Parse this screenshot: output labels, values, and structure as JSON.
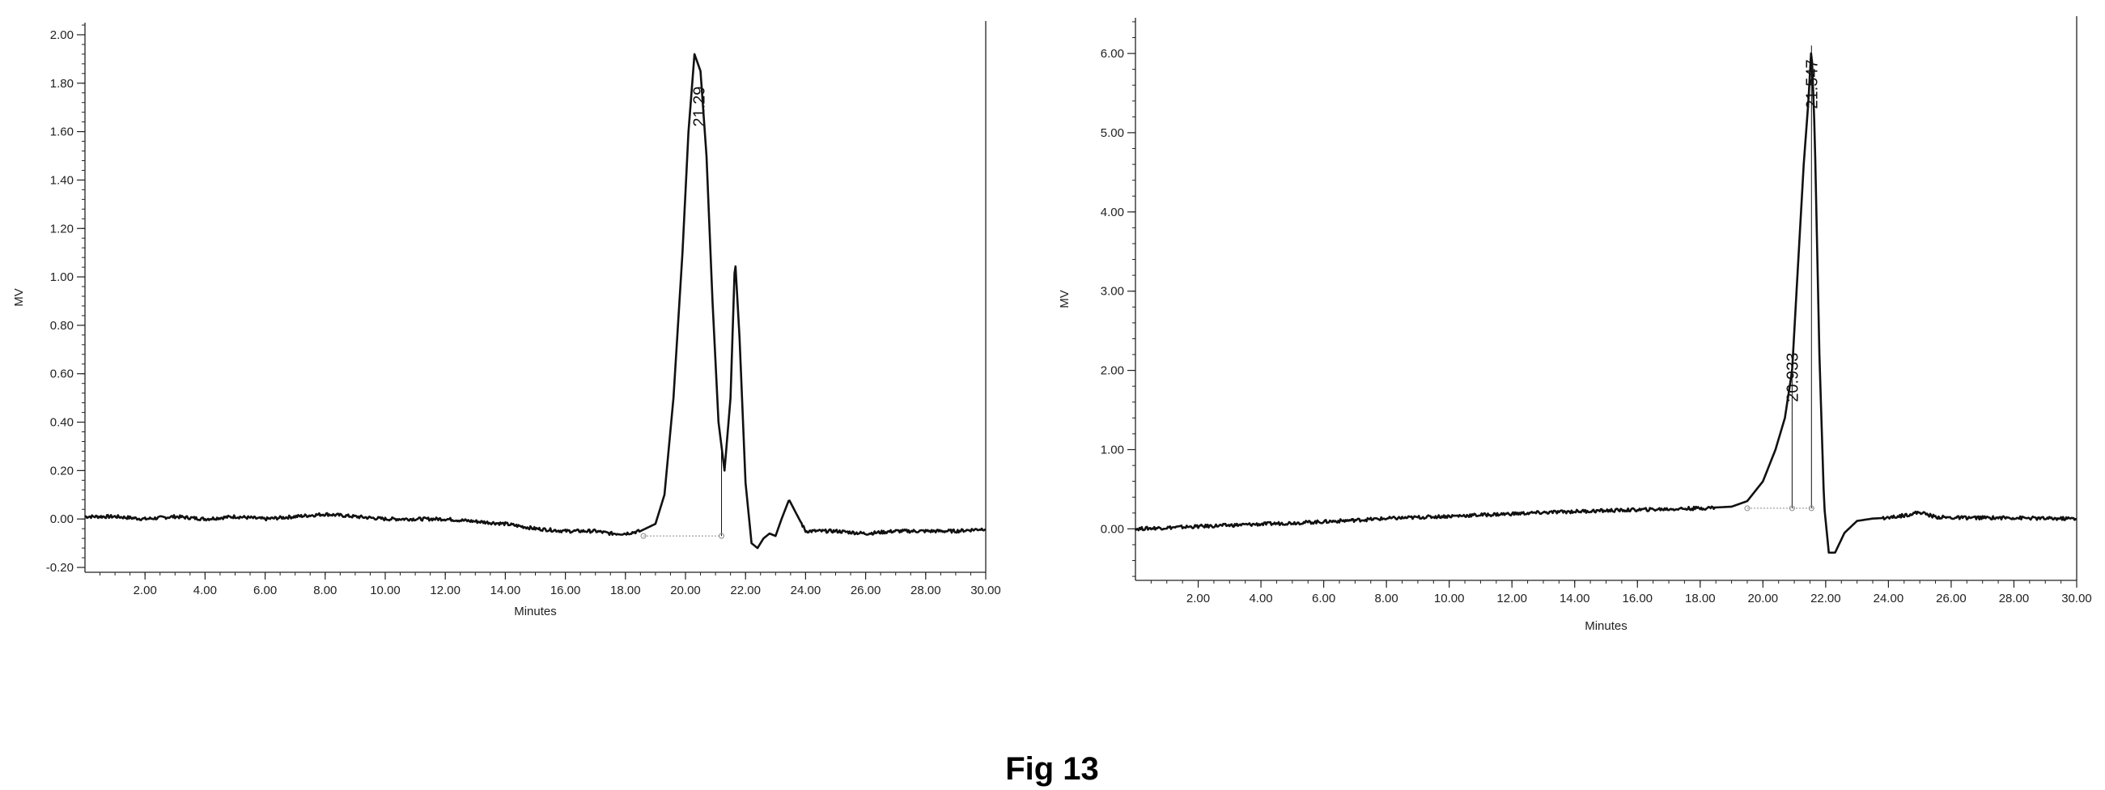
{
  "figure": {
    "caption": "Fig 13",
    "colors": {
      "trace": "#111111",
      "axis": "#222222",
      "baseline": "#888888"
    }
  },
  "chart_data": [
    {
      "type": "line",
      "title": "",
      "xlabel": "Minutes",
      "ylabel": "MV",
      "xlim": [
        0,
        30
      ],
      "ylim": [
        -0.22,
        2.05
      ],
      "grid": false,
      "x_ticks": [
        "2.00",
        "4.00",
        "6.00",
        "8.00",
        "10.00",
        "12.00",
        "14.00",
        "16.00",
        "18.00",
        "20.00",
        "22.00",
        "24.00",
        "26.00",
        "28.00",
        "30.00"
      ],
      "y_ticks": [
        "-0.20",
        "0.00",
        "0.20",
        "0.40",
        "0.60",
        "0.80",
        "1.00",
        "1.20",
        "1.40",
        "1.60",
        "1.80",
        "2.00"
      ],
      "series": [
        {
          "x": [
            0,
            1,
            2,
            3,
            4,
            5,
            6,
            7,
            8,
            9,
            10,
            11,
            12,
            13,
            14,
            15,
            16,
            17,
            17.5,
            18,
            18.5,
            19,
            19.3,
            19.6,
            19.9,
            20.1,
            20.3,
            20.5,
            20.7,
            20.9,
            21.1,
            21.3,
            21.5,
            21.65,
            21.8,
            22.0,
            22.2,
            22.4,
            22.6,
            22.8,
            23.0,
            23.2,
            23.45,
            23.7,
            24.0,
            24.5,
            25,
            26,
            27,
            28,
            29,
            30
          ],
          "y": [
            0.01,
            0.01,
            0.0,
            0.01,
            0.0,
            0.01,
            0.0,
            0.01,
            0.02,
            0.01,
            0.0,
            0.0,
            0.0,
            -0.01,
            -0.02,
            -0.04,
            -0.05,
            -0.05,
            -0.06,
            -0.06,
            -0.05,
            -0.02,
            0.1,
            0.5,
            1.1,
            1.6,
            1.92,
            1.85,
            1.5,
            0.9,
            0.4,
            0.2,
            0.5,
            1.08,
            0.75,
            0.15,
            -0.1,
            -0.12,
            -0.08,
            -0.06,
            -0.07,
            0.0,
            0.08,
            0.02,
            -0.05,
            -0.05,
            -0.05,
            -0.06,
            -0.05,
            -0.05,
            -0.05,
            -0.04
          ]
        }
      ],
      "peak_labels": [
        {
          "text": "21.29",
          "x": 20.45
        }
      ]
    },
    {
      "type": "line",
      "title": "",
      "xlabel": "Minutes",
      "ylabel": "MV",
      "xlim": [
        0,
        30
      ],
      "ylim": [
        -0.65,
        6.45
      ],
      "grid": false,
      "x_ticks": [
        "2.00",
        "4.00",
        "6.00",
        "8.00",
        "10.00",
        "12.00",
        "14.00",
        "16.00",
        "18.00",
        "20.00",
        "22.00",
        "24.00",
        "26.00",
        "28.00",
        "30.00"
      ],
      "y_ticks": [
        "0.00",
        "1.00",
        "2.00",
        "3.00",
        "4.00",
        "5.00",
        "6.00"
      ],
      "series": [
        {
          "x": [
            0,
            2,
            4,
            6,
            8,
            10,
            12,
            14,
            16,
            18,
            19,
            19.5,
            20,
            20.4,
            20.7,
            20.93,
            21.1,
            21.3,
            21.45,
            21.547,
            21.65,
            21.8,
            21.95,
            22.1,
            22.3,
            22.6,
            23,
            23.5,
            24,
            24.5,
            25,
            25.5,
            26,
            27,
            28,
            29,
            30
          ],
          "y": [
            0.0,
            0.03,
            0.06,
            0.09,
            0.13,
            0.16,
            0.19,
            0.22,
            0.24,
            0.26,
            0.28,
            0.35,
            0.6,
            1.0,
            1.4,
            2.0,
            3.2,
            4.6,
            5.4,
            6.1,
            5.0,
            2.2,
            0.3,
            -0.3,
            -0.3,
            -0.05,
            0.1,
            0.13,
            0.14,
            0.17,
            0.21,
            0.15,
            0.14,
            0.14,
            0.14,
            0.13,
            0.13
          ]
        }
      ],
      "peak_labels": [
        {
          "text": "20.933",
          "x": 20.93
        },
        {
          "text": "21.547",
          "x": 21.547
        }
      ]
    }
  ]
}
